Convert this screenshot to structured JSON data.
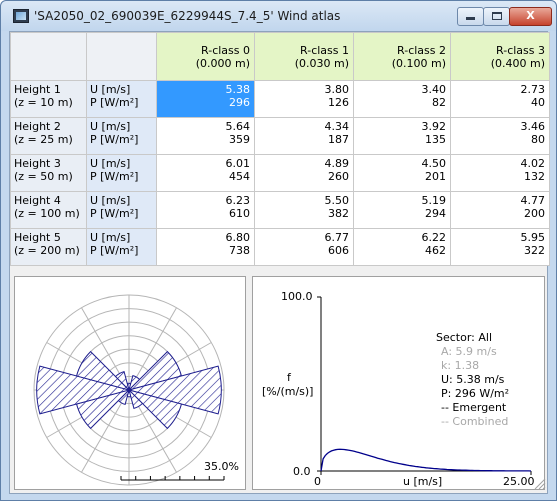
{
  "window": {
    "title": "'SA2050_02_690039E_6229944S_7.4_5' Wind atlas",
    "minimize_label": "",
    "close_label": "X"
  },
  "table": {
    "columns": [
      {
        "name": "R-class 0",
        "roughness": "(0.000 m)"
      },
      {
        "name": "R-class 1",
        "roughness": "(0.030 m)"
      },
      {
        "name": "R-class 2",
        "roughness": "(0.100 m)"
      },
      {
        "name": "R-class 3",
        "roughness": "(0.400 m)"
      }
    ],
    "rows": [
      {
        "height": "Height 1",
        "z": "(z = 10 m)",
        "u_label": "U [m/s]",
        "p_label": "P [W/m²]",
        "cells": [
          {
            "u": "5.38",
            "p": "296"
          },
          {
            "u": "3.80",
            "p": "126"
          },
          {
            "u": "3.40",
            "p": "82"
          },
          {
            "u": "2.73",
            "p": "40"
          }
        ]
      },
      {
        "height": "Height 2",
        "z": "(z = 25 m)",
        "u_label": "U [m/s]",
        "p_label": "P [W/m²]",
        "cells": [
          {
            "u": "5.64",
            "p": "359"
          },
          {
            "u": "4.34",
            "p": "187"
          },
          {
            "u": "3.92",
            "p": "135"
          },
          {
            "u": "3.46",
            "p": "80"
          }
        ]
      },
      {
        "height": "Height 3",
        "z": "(z = 50 m)",
        "u_label": "U [m/s]",
        "p_label": "P [W/m²]",
        "cells": [
          {
            "u": "6.01",
            "p": "454"
          },
          {
            "u": "4.89",
            "p": "260"
          },
          {
            "u": "4.50",
            "p": "201"
          },
          {
            "u": "4.02",
            "p": "132"
          }
        ]
      },
      {
        "height": "Height 4",
        "z": "(z = 100 m)",
        "u_label": "U [m/s]",
        "p_label": "P [W/m²]",
        "cells": [
          {
            "u": "6.23",
            "p": "610"
          },
          {
            "u": "5.50",
            "p": "382"
          },
          {
            "u": "5.19",
            "p": "294"
          },
          {
            "u": "4.77",
            "p": "200"
          }
        ]
      },
      {
        "height": "Height 5",
        "z": "(z = 200 m)",
        "u_label": "U [m/s]",
        "p_label": "P [W/m²]",
        "cells": [
          {
            "u": "6.80",
            "p": "738"
          },
          {
            "u": "6.77",
            "p": "606"
          },
          {
            "u": "6.22",
            "p": "462"
          },
          {
            "u": "5.95",
            "p": "322"
          }
        ]
      }
    ],
    "selected_cell": {
      "row": 0,
      "col": 0
    }
  },
  "rose": {
    "scale_label": "35.0%",
    "sectors": 12,
    "sector_frequencies_pct": [
      2.5,
      5.5,
      20.0,
      34.0,
      20.0,
      7.0,
      2.5,
      5.5,
      20.0,
      34.0,
      20.0,
      7.0
    ]
  },
  "distribution": {
    "y_max_label": "100.0",
    "y_min_label": "0.0",
    "y_axis_label_line1": "f",
    "y_axis_label_line2": "[%/(m/s)]",
    "x_min_label": "0",
    "x_axis_label": "u [m/s]",
    "x_max_label": "25.00",
    "info": {
      "sector": "Sector: All",
      "a": "A: 5.9 m/s",
      "k": "k: 1.38",
      "u": "U: 5.38 m/s",
      "p": "P: 296 W/m²",
      "emergent": "-- Emergent",
      "combined": "-- Combined"
    }
  },
  "colors": {
    "accent_selection": "#3399ff",
    "header_green": "#e4f5c6",
    "curve": "#00008b",
    "rose": "#1f1f8f"
  }
}
